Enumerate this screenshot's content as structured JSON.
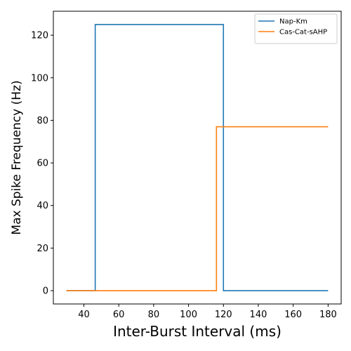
{
  "chart_data": {
    "type": "line",
    "title": "",
    "xlabel": "Inter-Burst Interval (ms)",
    "ylabel": "Max Spike Frequency (Hz)",
    "xlim": [
      22.5,
      187.5
    ],
    "ylim": [
      -6.25,
      131.25
    ],
    "xticks": [
      40,
      60,
      80,
      100,
      120,
      140,
      160,
      180
    ],
    "yticks": [
      0,
      20,
      40,
      60,
      80,
      100,
      120
    ],
    "grid": false,
    "legend_position": "top-right",
    "series": [
      {
        "name": "Nap-Km",
        "color": "#1f77b4",
        "x": [
          30,
          46.5,
          46.5,
          120,
          120,
          180
        ],
        "y": [
          0,
          0,
          125,
          125,
          0,
          0
        ]
      },
      {
        "name": "Cas-Cat-sAHP",
        "color": "#ff7f0e",
        "x": [
          30,
          116,
          116,
          180
        ],
        "y": [
          0,
          0,
          77,
          77
        ]
      }
    ]
  }
}
